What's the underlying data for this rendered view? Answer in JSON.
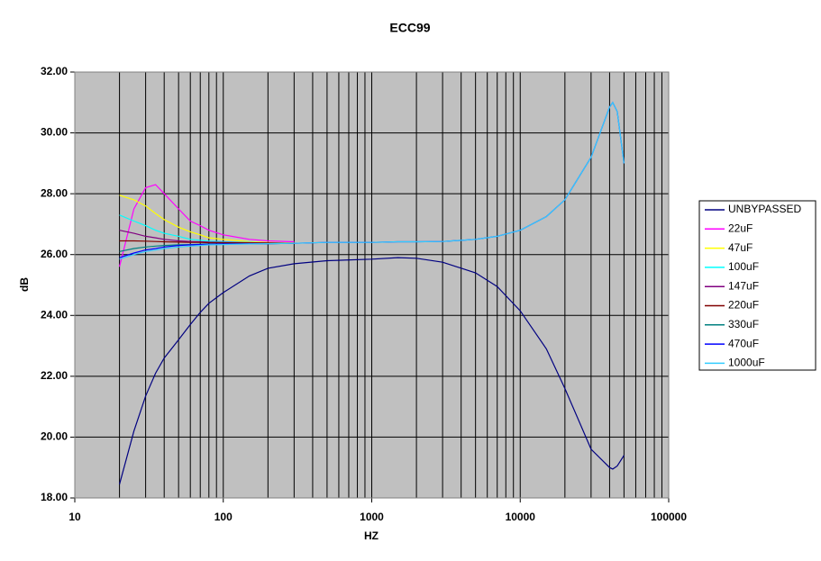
{
  "chart_data": {
    "type": "line",
    "title": "ECC99",
    "xlabel": "HZ",
    "ylabel": "dB",
    "xscale": "log",
    "xlim": [
      10,
      100000
    ],
    "xticks": [
      10,
      100,
      1000,
      10000,
      100000
    ],
    "x_minor_ticks": [
      20,
      30,
      40,
      50,
      60,
      70,
      80,
      90,
      200,
      300,
      400,
      500,
      600,
      700,
      800,
      900,
      2000,
      3000,
      4000,
      5000,
      6000,
      7000,
      8000,
      9000,
      20000,
      30000,
      40000,
      50000,
      60000,
      70000,
      80000,
      90000
    ],
    "ylim": [
      18,
      32
    ],
    "yticks": [
      {
        "value": 18,
        "label": "18.00"
      },
      {
        "value": 20,
        "label": "20.00"
      },
      {
        "value": 22,
        "label": "22.00"
      },
      {
        "value": 24,
        "label": "24.00"
      },
      {
        "value": 26,
        "label": "26.00"
      },
      {
        "value": 28,
        "label": "28.00"
      },
      {
        "value": 30,
        "label": "30.00"
      },
      {
        "value": 32,
        "label": "32.00"
      }
    ],
    "grid": true,
    "legend": "right",
    "x": [
      20,
      25,
      30,
      35,
      40,
      50,
      60,
      70,
      80,
      100,
      150,
      200,
      300,
      500,
      1000,
      1500,
      2000,
      3000,
      5000,
      7000,
      10000,
      15000,
      20000,
      30000,
      40000,
      42000,
      45000,
      50000
    ],
    "series": [
      {
        "name": "UNBYPASSED",
        "color": "#000080",
        "values": [
          18.45,
          20.2,
          21.35,
          22.1,
          22.6,
          23.2,
          23.7,
          24.1,
          24.4,
          24.75,
          25.3,
          25.55,
          25.7,
          25.8,
          25.85,
          25.9,
          25.88,
          25.75,
          25.4,
          24.95,
          24.15,
          22.9,
          21.6,
          19.6,
          19.0,
          18.95,
          19.05,
          19.4
        ]
      },
      {
        "name": "22uF",
        "color": "#ff00ff",
        "values": [
          25.6,
          27.5,
          28.2,
          28.3,
          28.0,
          27.5,
          27.1,
          26.95,
          26.8,
          26.65,
          26.5,
          26.45,
          26.42,
          null,
          null,
          null,
          null,
          null,
          null,
          null,
          null,
          null,
          null,
          null,
          null,
          null,
          null,
          null
        ]
      },
      {
        "name": "47uF",
        "color": "#ffff00",
        "values": [
          27.95,
          27.8,
          27.6,
          27.35,
          27.15,
          26.9,
          26.75,
          26.65,
          26.55,
          26.5,
          26.42,
          26.4,
          26.38,
          null,
          null,
          null,
          null,
          null,
          null,
          null,
          null,
          null,
          null,
          null,
          null,
          null,
          null,
          null
        ]
      },
      {
        "name": "100uF",
        "color": "#00ffff",
        "values": [
          27.3,
          27.1,
          26.95,
          26.8,
          26.7,
          26.6,
          26.5,
          26.47,
          26.44,
          26.42,
          26.4,
          26.38,
          26.37,
          null,
          null,
          null,
          null,
          null,
          null,
          null,
          null,
          null,
          null,
          null,
          null,
          null,
          null,
          null
        ]
      },
      {
        "name": "147uF",
        "color": "#800080",
        "values": [
          26.8,
          26.7,
          26.6,
          26.55,
          26.5,
          26.45,
          26.43,
          26.42,
          26.41,
          26.4,
          26.39,
          26.38,
          26.37,
          null,
          null,
          null,
          null,
          null,
          null,
          null,
          null,
          null,
          null,
          null,
          null,
          null,
          null,
          null
        ]
      },
      {
        "name": "220uF",
        "color": "#800000",
        "values": [
          26.45,
          26.45,
          26.44,
          26.43,
          26.42,
          26.41,
          26.4,
          26.4,
          26.39,
          26.39,
          26.38,
          26.38,
          26.37,
          null,
          null,
          null,
          null,
          null,
          null,
          null,
          null,
          null,
          null,
          null,
          null,
          null,
          null,
          null
        ]
      },
      {
        "name": "330uF",
        "color": "#008080",
        "values": [
          26.1,
          26.2,
          26.25,
          26.28,
          26.3,
          26.32,
          26.33,
          26.34,
          26.35,
          26.35,
          26.36,
          26.36,
          26.37,
          null,
          null,
          null,
          null,
          null,
          null,
          null,
          null,
          null,
          null,
          null,
          null,
          null,
          null,
          null
        ]
      },
      {
        "name": "470uF",
        "color": "#0000ff",
        "values": [
          25.9,
          26.05,
          26.15,
          26.2,
          26.25,
          26.3,
          26.32,
          26.33,
          26.34,
          26.35,
          26.36,
          26.36,
          26.37,
          26.4,
          26.4,
          26.42,
          26.42,
          26.43,
          26.5,
          26.6,
          26.8,
          27.25,
          27.8,
          29.2,
          30.85,
          31.0,
          30.7,
          29.0
        ]
      },
      {
        "name": "1000uF",
        "color": "#33ccff",
        "values": [
          25.85,
          26.0,
          26.1,
          26.15,
          26.2,
          26.25,
          26.28,
          26.3,
          26.32,
          26.33,
          26.35,
          26.36,
          26.37,
          26.4,
          26.4,
          26.42,
          26.42,
          26.43,
          26.5,
          26.6,
          26.8,
          27.25,
          27.8,
          29.2,
          30.85,
          31.0,
          30.7,
          29.0
        ]
      }
    ]
  }
}
